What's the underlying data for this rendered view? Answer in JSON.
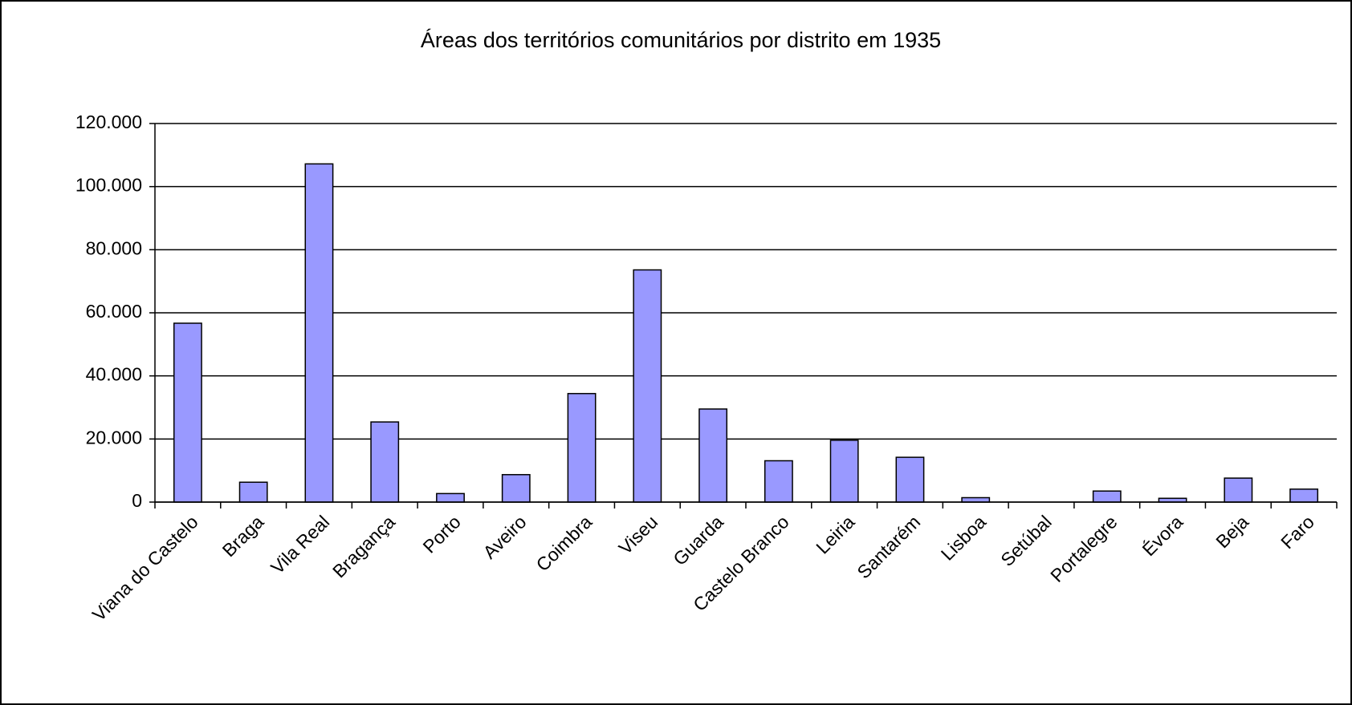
{
  "chart_data": {
    "type": "bar",
    "title": "Áreas dos territórios comunitários por distrito em 1935",
    "categories": [
      "Viana do Castelo",
      "Braga",
      "Vila Real",
      "Bragança",
      "Porto",
      "Aveiro",
      "Coimbra",
      "Viseu",
      "Guarda",
      "Castelo Branco",
      "Leiria",
      "Santarém",
      "Lisboa",
      "Setúbal",
      "Portalegre",
      "Évora",
      "Beja",
      "Faro"
    ],
    "values": [
      56700,
      6300,
      107200,
      25400,
      2700,
      8700,
      34400,
      73600,
      29500,
      13100,
      19600,
      14200,
      1400,
      0,
      3500,
      1200,
      7600,
      4100
    ],
    "color": "#9999ff",
    "ylim": [
      0,
      120000
    ],
    "yticks": [
      0,
      {
        "value": 20000,
        "label": "20.000"
      },
      {
        "value": 40000,
        "label": "40.000"
      },
      {
        "value": 60000,
        "label": "60.000"
      },
      {
        "value": 80000,
        "label": "80.000"
      },
      {
        "value": 100000,
        "label": "100.000"
      },
      {
        "value": 120000,
        "label": "120.000"
      }
    ],
    "grid": true
  }
}
